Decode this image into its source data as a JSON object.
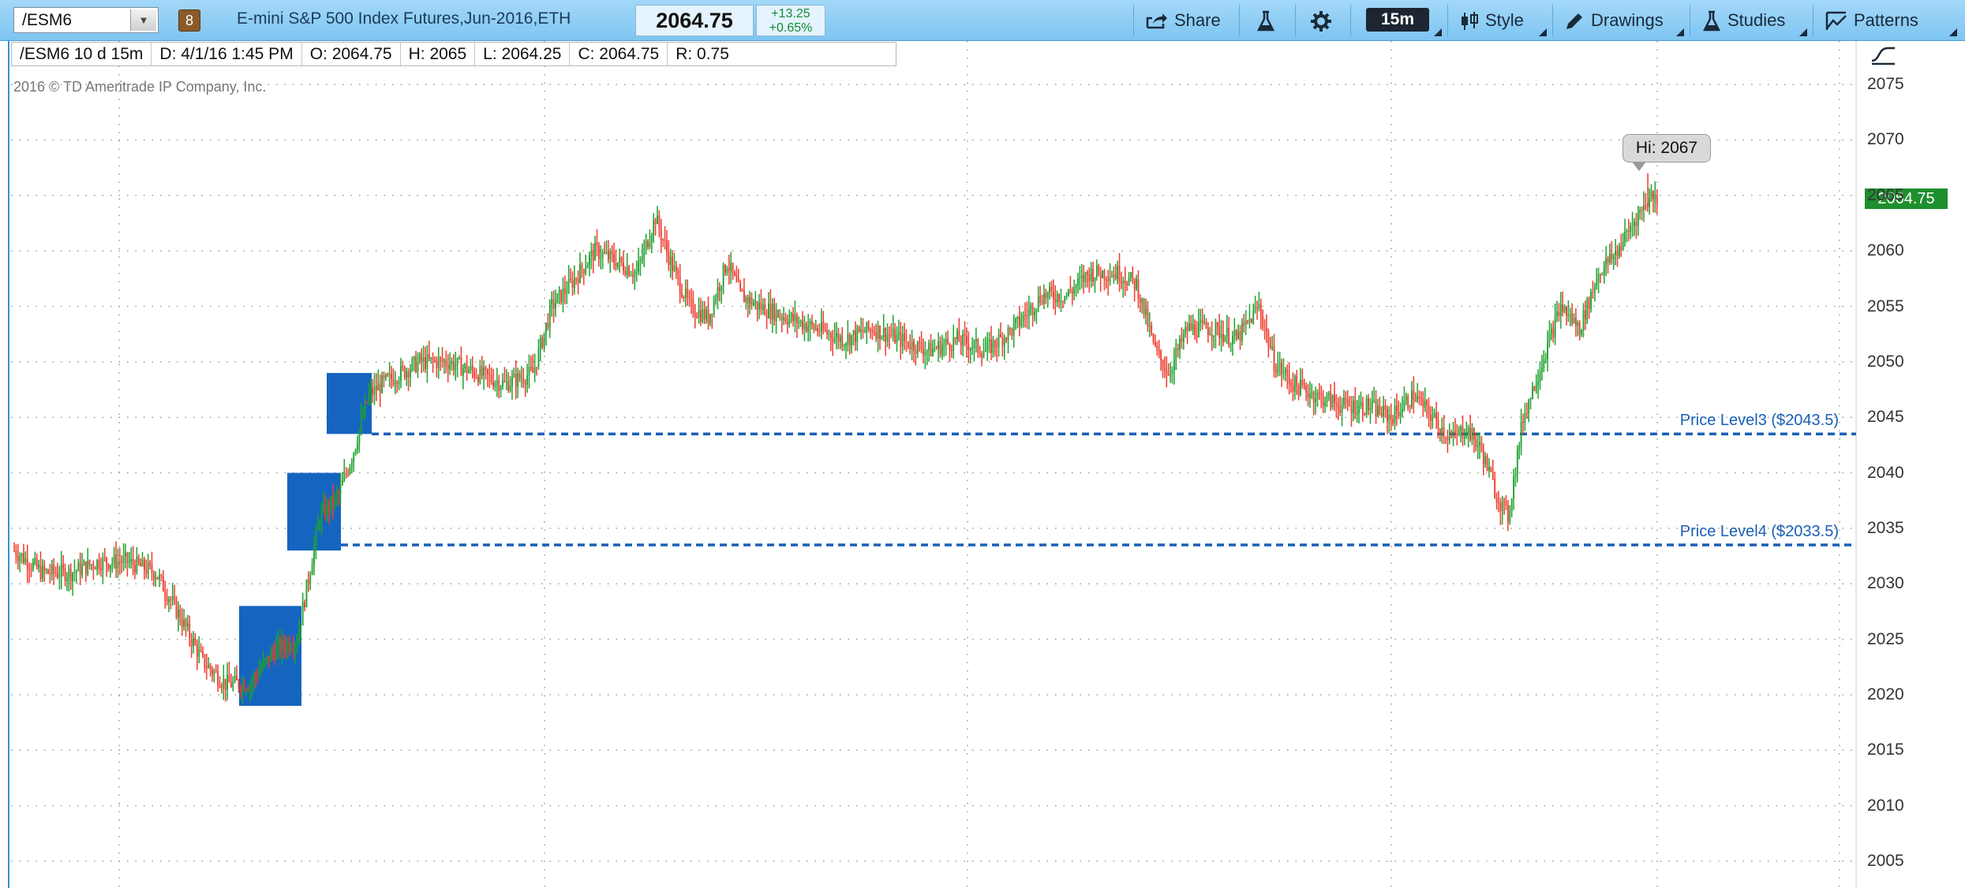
{
  "toolbar": {
    "symbol": "/ESM6",
    "badge": "8",
    "description": "E-mini S&P 500 Index Futures,Jun-2016,ETH",
    "last_price": "2064.75",
    "change": "+13.25",
    "change_pct": "+0.65%",
    "share_label": "Share",
    "timeframe": "15m",
    "style_label": "Style",
    "drawings_label": "Drawings",
    "studies_label": "Studies",
    "patterns_label": "Patterns"
  },
  "infobar": {
    "title": "/ESM6 10 d 15m",
    "date": "D:  4/1/16 1:45 PM",
    "open": "O:  2064.75",
    "high": "H:  2065",
    "low": "L:  2064.25",
    "close": "C:  2064.75",
    "range": "R:  0.75"
  },
  "chart": {
    "copyright": "2016 © TD Ameritrade IP Company, Inc.",
    "hi_label": "Hi: 2067",
    "current_price_tag": "2064.75",
    "price_level_3": "Price Level3 ($2043.5)",
    "price_level_4": "Price Level4 ($2033.5)",
    "y_ticks": [
      "2075",
      "2070",
      "2065",
      "2060",
      "2055",
      "2050",
      "2045",
      "2040",
      "2035",
      "2030",
      "2025",
      "2020",
      "2015",
      "2010",
      "2005"
    ]
  },
  "colors": {
    "up": "#1fa12f",
    "down": "#ef3b2d",
    "level_line": "#1a5fb4",
    "highlight_box": "#1565c0",
    "toolbar_bg": "#8ccdf5"
  },
  "chart_data": {
    "type": "candlestick",
    "title": "/ESM6 10 d 15m",
    "ylim": [
      2004,
      2078
    ],
    "grid": true,
    "price_levels": [
      {
        "name": "Price Level3",
        "value": 2043.5
      },
      {
        "name": "Price Level4",
        "value": 2033.5
      }
    ],
    "highlight_zones": [
      {
        "low": 2019,
        "high": 2028
      },
      {
        "low": 2033,
        "high": 2040
      },
      {
        "low": 2043.5,
        "high": 2049
      }
    ],
    "high_marker": 2067,
    "last": 2064.75,
    "path_points": [
      [
        0,
        2033
      ],
      [
        15,
        2031
      ],
      [
        30,
        2031
      ],
      [
        45,
        2032
      ],
      [
        60,
        2032
      ],
      [
        75,
        2031
      ],
      [
        88,
        2027
      ],
      [
        100,
        2023
      ],
      [
        112,
        2021
      ],
      [
        125,
        2021
      ],
      [
        138,
        2024
      ],
      [
        150,
        2025
      ],
      [
        162,
        2036
      ],
      [
        172,
        2038
      ],
      [
        180,
        2042
      ],
      [
        188,
        2047
      ],
      [
        195,
        2048
      ],
      [
        205,
        2049
      ],
      [
        215,
        2050
      ],
      [
        230,
        2050
      ],
      [
        245,
        2049
      ],
      [
        260,
        2048
      ],
      [
        275,
        2049
      ],
      [
        285,
        2055
      ],
      [
        295,
        2057
      ],
      [
        308,
        2060
      ],
      [
        320,
        2059
      ],
      [
        330,
        2058
      ],
      [
        340,
        2063
      ],
      [
        348,
        2059
      ],
      [
        358,
        2055
      ],
      [
        368,
        2054
      ],
      [
        378,
        2059
      ],
      [
        385,
        2056
      ],
      [
        395,
        2055
      ],
      [
        410,
        2054
      ],
      [
        425,
        2053
      ],
      [
        440,
        2052
      ],
      [
        455,
        2053
      ],
      [
        470,
        2052
      ],
      [
        485,
        2051
      ],
      [
        500,
        2052
      ],
      [
        515,
        2051
      ],
      [
        530,
        2053
      ],
      [
        545,
        2056
      ],
      [
        558,
        2056
      ],
      [
        570,
        2058
      ],
      [
        585,
        2058
      ],
      [
        595,
        2057
      ],
      [
        605,
        2051
      ],
      [
        612,
        2049
      ],
      [
        622,
        2053
      ],
      [
        635,
        2053
      ],
      [
        648,
        2052
      ],
      [
        660,
        2055
      ],
      [
        668,
        2050
      ],
      [
        678,
        2048
      ],
      [
        690,
        2047
      ],
      [
        705,
        2046
      ],
      [
        718,
        2046
      ],
      [
        730,
        2045
      ],
      [
        742,
        2047
      ],
      [
        752,
        2045
      ],
      [
        762,
        2043
      ],
      [
        770,
        2044
      ],
      [
        778,
        2042
      ],
      [
        786,
        2038
      ],
      [
        792,
        2036
      ],
      [
        800,
        2045
      ],
      [
        810,
        2050
      ],
      [
        820,
        2055
      ],
      [
        830,
        2053
      ],
      [
        840,
        2058
      ],
      [
        850,
        2060
      ],
      [
        860,
        2063
      ],
      [
        868,
        2065
      ],
      [
        872,
        2064.75
      ]
    ]
  }
}
